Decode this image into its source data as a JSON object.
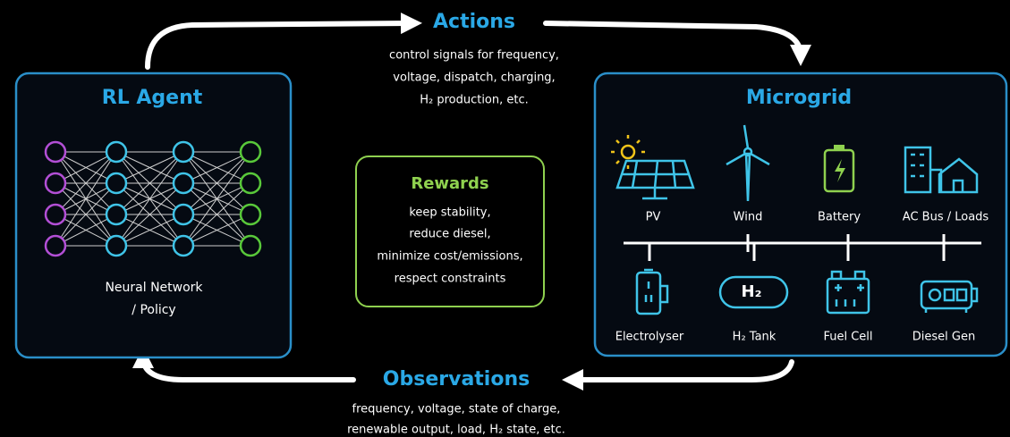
{
  "actions": {
    "title": "Actions",
    "lines": [
      "control signals for frequency,",
      "voltage, dispatch, charging,",
      "H₂ production, etc."
    ]
  },
  "agent": {
    "title": "RL Agent",
    "lines": [
      "Neural Network",
      "/ Policy"
    ]
  },
  "rewards": {
    "title": "Rewards",
    "lines": [
      "keep stability,",
      "reduce diesel,",
      "minimize cost/emissions,",
      "respect constraints"
    ]
  },
  "microgrid": {
    "title": "Microgrid",
    "top": [
      "PV",
      "Wind",
      "Battery",
      "AC Bus / Loads"
    ],
    "bottom": [
      "Electrolyser",
      "H₂ Tank",
      "Fuel Cell",
      "Diesel Gen"
    ]
  },
  "observations": {
    "title": "Observations",
    "lines": [
      "frequency, voltage, state of charge,",
      "renewable output, load, H₂ state, etc."
    ]
  }
}
